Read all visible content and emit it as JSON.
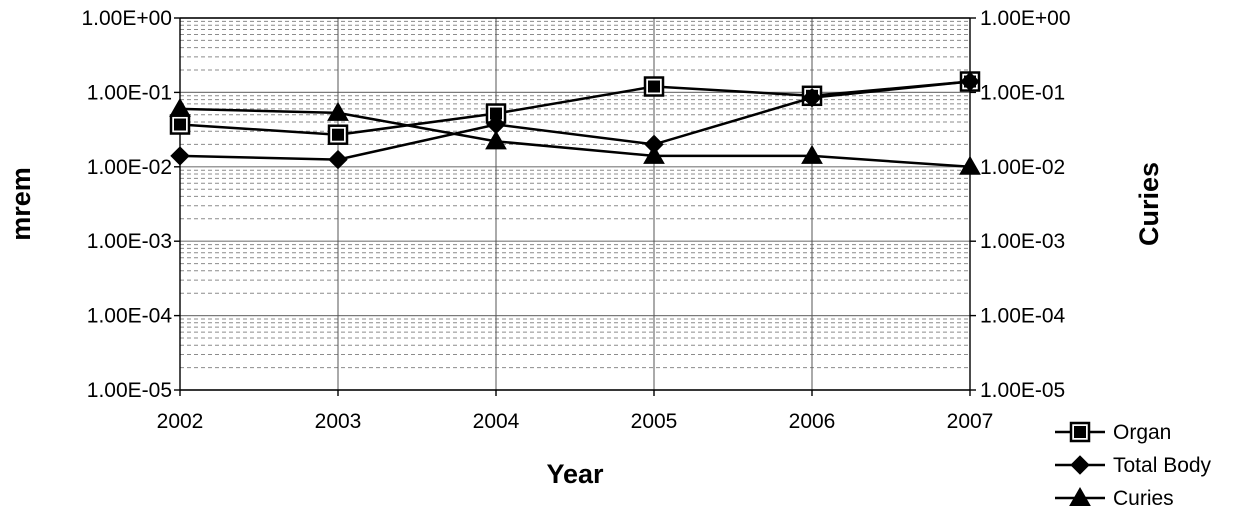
{
  "chart_data": {
    "type": "line",
    "xlabel": "Year",
    "ylabel": "mrem",
    "y2label": "Curies",
    "categories": [
      "2002",
      "2003",
      "2004",
      "2005",
      "2006",
      "2007"
    ],
    "y_scale": "log",
    "ylim": [
      1e-05,
      1
    ],
    "y2lim": [
      1e-05,
      1
    ],
    "y_ticks": [
      "1.00E+00",
      "1.00E-01",
      "1.00E-02",
      "1.00E-03",
      "1.00E-04",
      "1.00E-05"
    ],
    "y2_ticks": [
      "1.00E+00",
      "1.00E-01",
      "1.00E-02",
      "1.00E-03",
      "1.00E-04",
      "1.00E-05"
    ],
    "grid": true,
    "legend_position": "bottom-right",
    "series": [
      {
        "name": "Organ",
        "marker": "square",
        "values": [
          0.037,
          0.027,
          0.052,
          0.12,
          0.09,
          0.14
        ]
      },
      {
        "name": "Total Body",
        "marker": "diamond",
        "values": [
          0.014,
          0.0125,
          0.037,
          0.02,
          0.085,
          0.14
        ]
      },
      {
        "name": "Curies",
        "marker": "triangle",
        "values": [
          0.06,
          0.053,
          0.022,
          0.014,
          0.014,
          0.01
        ]
      }
    ]
  }
}
